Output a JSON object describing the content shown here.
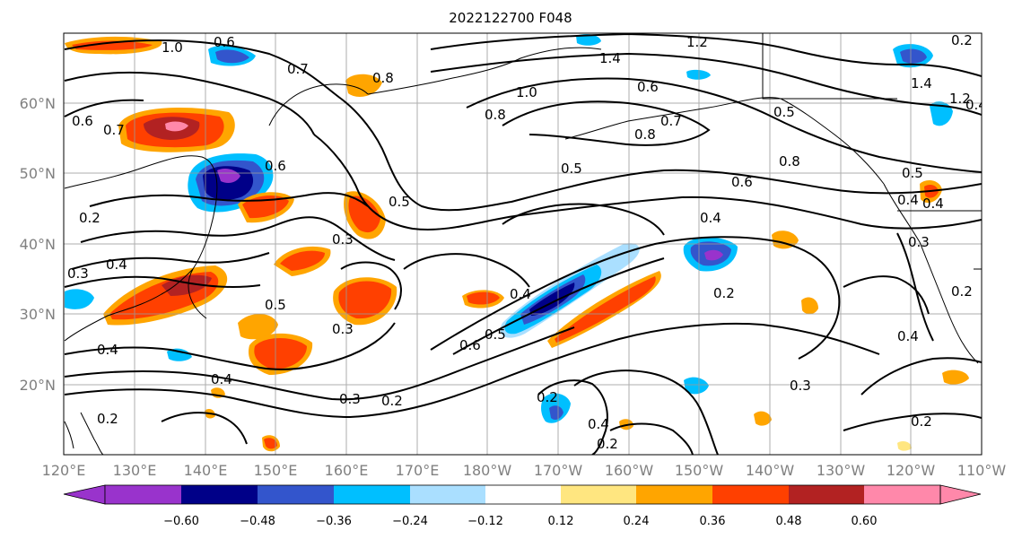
{
  "title": "2022122700 F048",
  "lon_ticks": [
    "120°E",
    "130°E",
    "140°E",
    "150°E",
    "160°E",
    "170°E",
    "180°W",
    "170°W",
    "160°W",
    "150°W",
    "140°W",
    "130°W",
    "120°W",
    "110°W"
  ],
  "lat_ticks": [
    "60°N",
    "50°N",
    "40°N",
    "30°N",
    "20°N"
  ],
  "colorbar": {
    "colors": [
      "#9933cc",
      "#000088",
      "#3355cc",
      "#00bfff",
      "#aadfff",
      "#ffffff",
      "#ffe680",
      "#ffa500",
      "#ff4000",
      "#b22222",
      "#ff88aa"
    ],
    "labels": [
      "−0.60",
      "−0.48",
      "−0.36",
      "−0.24",
      "−0.12",
      "0.12",
      "0.24",
      "0.36",
      "0.48",
      "0.60"
    ]
  },
  "contour_labels": [
    "1.0",
    "0.6",
    "0.7",
    "0.6",
    "0.7",
    "0.8",
    "1.2",
    "1.4",
    "0.8",
    "1.0",
    "0.6",
    "0.5",
    "0.8",
    "0.6",
    "0.7",
    "0.5",
    "0.8",
    "0.6",
    "0.5",
    "0.4",
    "0.4",
    "0.4",
    "0.3",
    "0.5",
    "0.3",
    "0.4",
    "0.3",
    "0.2",
    "0.2",
    "0.4",
    "0.2",
    "0.3",
    "0.6",
    "0.5",
    "0.4",
    "0.2",
    "0.2",
    "0.4",
    "0.2",
    "0.3",
    "0.4",
    "0.2",
    "1.4",
    "1.2",
    "0.5",
    "0.4",
    "0.3",
    "0.2",
    "0.4",
    "0.2"
  ],
  "colors": {
    "contour": "#000000",
    "grid": "#999999",
    "tick_label": "#808080"
  }
}
